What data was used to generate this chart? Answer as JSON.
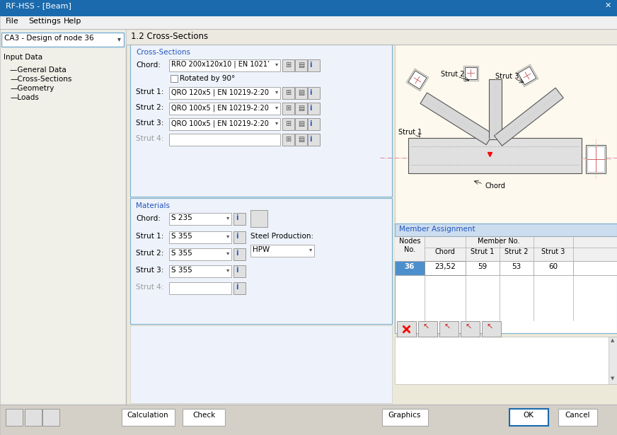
{
  "title_bar": "RF-HSS - [Beam]",
  "title_bar_color": "#1a6aad",
  "menu_items": [
    "File",
    "Settings",
    "Help"
  ],
  "dropdown_label": "CA3 - Design of node 36",
  "section_title": "1.2 Cross-Sections",
  "left_panel_items": [
    "Input Data",
    "General Data",
    "Cross-Sections",
    "Geometry",
    "Loads"
  ],
  "cross_section_label": "Cross-Sections",
  "chord_label": "Chord:",
  "chord_value": "RRO 200x120x10 | EN 1021’",
  "rotated_label": "Rotated by 90°",
  "struts": [
    {
      "label": "Strut 1:",
      "value": "QRO 120x5 | EN 10219-2:20"
    },
    {
      "label": "Strut 2:",
      "value": "QRO 100x5 | EN 10219-2:20"
    },
    {
      "label": "Strut 3:",
      "value": "QRO 100x5 | EN 10219-2:20"
    },
    {
      "label": "Strut 4:",
      "value": ""
    }
  ],
  "materials_label": "Materials",
  "chord_material": "S 235",
  "strut_materials": [
    "S 355",
    "S 355",
    "S 355",
    ""
  ],
  "steel_production_label": "Steel Production:",
  "steel_production_value": "HPW",
  "member_assignment_label": "Member Assignment",
  "table_row": [
    "36",
    "23,52",
    "59",
    "53",
    "60"
  ],
  "bottom_buttons": [
    "Calculation",
    "Check",
    "Graphics",
    "OK",
    "Cancel"
  ],
  "dark_blue": "#1a6aad",
  "mid_blue": "#4d8fcc",
  "light_blue_bg": "#dde8f5",
  "section_border": "#7aafd4",
  "window_bg": "#d4d0c8",
  "main_bg": "#ece9d8",
  "panel_bg": "#f5f4f2",
  "left_panel_bg": "#f0efe8",
  "diagram_bg": "#fdf9ee",
  "table_header_bg": "#e8e8e8",
  "row_highlight": "#4d8fcc",
  "btn_bg": "#ece9d8",
  "gray_text": "#999999",
  "border_color": "#aaaaaa",
  "dark_border": "#888888",
  "cs_box_bg": "#eef3fb",
  "mat_box_bg": "#eef3fb"
}
